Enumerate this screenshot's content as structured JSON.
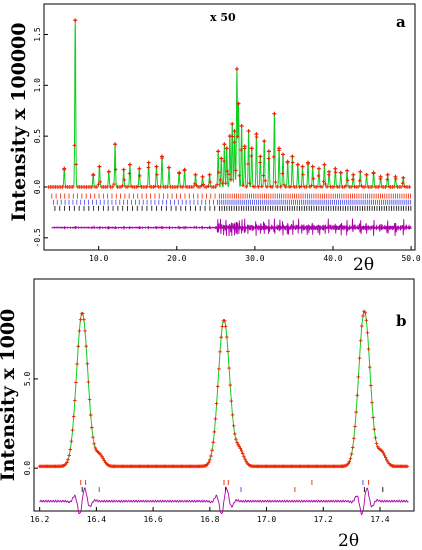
{
  "chart_data": [
    {
      "type": "line",
      "panel_label": "a",
      "annotation": "x 50",
      "ylabel": "Intensity x 100000",
      "xlabel": "2θ",
      "xlim": [
        3,
        50.5
      ],
      "ylim": [
        -0.62,
        1.8
      ],
      "xticks": [
        10,
        20,
        30,
        40,
        50
      ],
      "xtick_labels": [
        "10.0",
        "20.0",
        "30.0",
        "40.0",
        "50.0"
      ],
      "yticks": [
        -0.5,
        0.0,
        0.5,
        1.0,
        1.5
      ],
      "ytick_labels": [
        "-0.5",
        "0.0",
        "0.5",
        "1.0",
        "1.5"
      ],
      "series": [],
      "peaks": [
        [
          7.0,
          1.64
        ],
        [
          5.6,
          0.18
        ],
        [
          9.3,
          0.12
        ],
        [
          10.1,
          0.2
        ],
        [
          11.3,
          0.15
        ],
        [
          12.1,
          0.42
        ],
        [
          13.2,
          0.17
        ],
        [
          14.0,
          0.22
        ],
        [
          15.2,
          0.18
        ],
        [
          16.4,
          0.24
        ],
        [
          17.4,
          0.2
        ],
        [
          18.1,
          0.3
        ],
        [
          19.0,
          0.19
        ],
        [
          20.3,
          0.14
        ],
        [
          21.0,
          0.17
        ],
        [
          22.4,
          0.12
        ],
        [
          23.3,
          0.1
        ],
        [
          24.2,
          0.12
        ],
        [
          25.3,
          0.35
        ],
        [
          25.7,
          0.28
        ],
        [
          26.1,
          0.42
        ],
        [
          26.4,
          0.38
        ],
        [
          26.8,
          0.5
        ],
        [
          27.1,
          0.62
        ],
        [
          27.4,
          0.55
        ],
        [
          27.7,
          1.16
        ],
        [
          27.9,
          0.82
        ],
        [
          28.3,
          0.6
        ],
        [
          28.7,
          0.4
        ],
        [
          29.2,
          0.55
        ],
        [
          29.6,
          0.38
        ],
        [
          30.2,
          0.52
        ],
        [
          30.7,
          0.3
        ],
        [
          31.2,
          0.45
        ],
        [
          31.8,
          0.35
        ],
        [
          32.5,
          0.72
        ],
        [
          33.1,
          0.38
        ],
        [
          33.6,
          0.32
        ],
        [
          34.2,
          0.25
        ],
        [
          34.8,
          0.3
        ],
        [
          35.5,
          0.22
        ],
        [
          36.1,
          0.2
        ],
        [
          36.8,
          0.24
        ],
        [
          37.4,
          0.2
        ],
        [
          38.2,
          0.18
        ],
        [
          38.9,
          0.22
        ],
        [
          39.5,
          0.15
        ],
        [
          40.3,
          0.18
        ],
        [
          41.0,
          0.14
        ],
        [
          41.8,
          0.16
        ],
        [
          42.6,
          0.12
        ],
        [
          43.5,
          0.15
        ],
        [
          44.3,
          0.12
        ],
        [
          45.2,
          0.14
        ],
        [
          46.1,
          0.1
        ],
        [
          47.0,
          0.12
        ],
        [
          48.0,
          0.1
        ],
        [
          49.0,
          0.09
        ]
      ],
      "scaled_from_2theta": 25,
      "colors": {
        "observed": "#ee2200",
        "calculated": "#11cc22",
        "difference": "#aa00aa",
        "ticks": [
          "#ee2200",
          "#4444ee",
          "#000000"
        ]
      }
    },
    {
      "type": "line",
      "panel_label": "b",
      "ylabel": "Intensity x 1000",
      "xlabel": "2θ",
      "xlim": [
        16.18,
        17.52
      ],
      "ylim": [
        -2.4,
        10.6
      ],
      "xticks": [
        16.2,
        16.4,
        16.6,
        16.8,
        17.0,
        17.2,
        17.4
      ],
      "xtick_labels": [
        "16.2",
        "16.4",
        "16.6",
        "16.8",
        "17.0",
        "17.2",
        "17.4"
      ],
      "yticks": [
        0.0,
        5.0
      ],
      "ytick_labels": [
        "0.0",
        "5.0"
      ],
      "series": [],
      "peaks": [
        [
          16.35,
          8.6,
          0.02
        ],
        [
          16.41,
          0.65,
          0.015
        ],
        [
          16.85,
          8.2,
          0.02
        ],
        [
          16.905,
          0.9,
          0.015
        ],
        [
          17.345,
          8.7,
          0.02
        ],
        [
          17.405,
          0.8,
          0.015
        ]
      ],
      "background": 0.1,
      "colors": {
        "observed": "#ee2200",
        "calculated": "#11cc22",
        "difference": "#aa00aa",
        "ticks": [
          "#ee2200",
          "#4444ee",
          "#000000"
        ]
      }
    }
  ]
}
